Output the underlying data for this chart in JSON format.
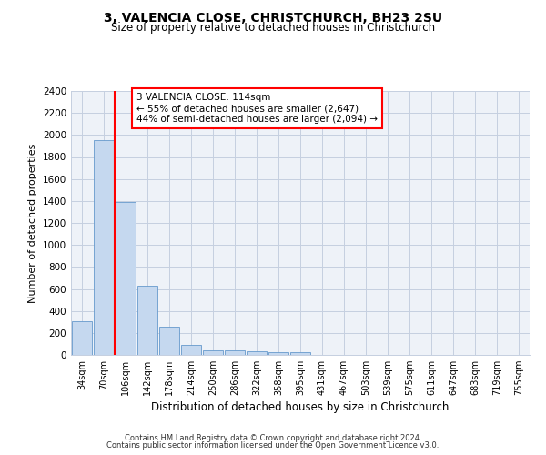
{
  "title1": "3, VALENCIA CLOSE, CHRISTCHURCH, BH23 2SU",
  "title2": "Size of property relative to detached houses in Christchurch",
  "xlabel": "Distribution of detached houses by size in Christchurch",
  "ylabel": "Number of detached properties",
  "bar_labels": [
    "34sqm",
    "70sqm",
    "106sqm",
    "142sqm",
    "178sqm",
    "214sqm",
    "250sqm",
    "286sqm",
    "322sqm",
    "358sqm",
    "395sqm",
    "431sqm",
    "467sqm",
    "503sqm",
    "539sqm",
    "575sqm",
    "611sqm",
    "647sqm",
    "683sqm",
    "719sqm",
    "755sqm"
  ],
  "bar_values": [
    310,
    1950,
    1390,
    630,
    255,
    90,
    45,
    45,
    30,
    25,
    25,
    0,
    0,
    0,
    0,
    0,
    0,
    0,
    0,
    0,
    0
  ],
  "bar_color": "#c5d8ef",
  "bar_edge_color": "#6699cc",
  "vline_x_index": 1.5,
  "vline_color": "red",
  "ylim": [
    0,
    2400
  ],
  "yticks": [
    0,
    200,
    400,
    600,
    800,
    1000,
    1200,
    1400,
    1600,
    1800,
    2000,
    2200,
    2400
  ],
  "annotation_text": "3 VALENCIA CLOSE: 114sqm\n← 55% of detached houses are smaller (2,647)\n44% of semi-detached houses are larger (2,094) →",
  "annotation_box_color": "white",
  "annotation_box_edge": "red",
  "footer1": "Contains HM Land Registry data © Crown copyright and database right 2024.",
  "footer2": "Contains public sector information licensed under the Open Government Licence v3.0.",
  "bg_color": "#eef2f8",
  "grid_color": "#c5cfe0"
}
